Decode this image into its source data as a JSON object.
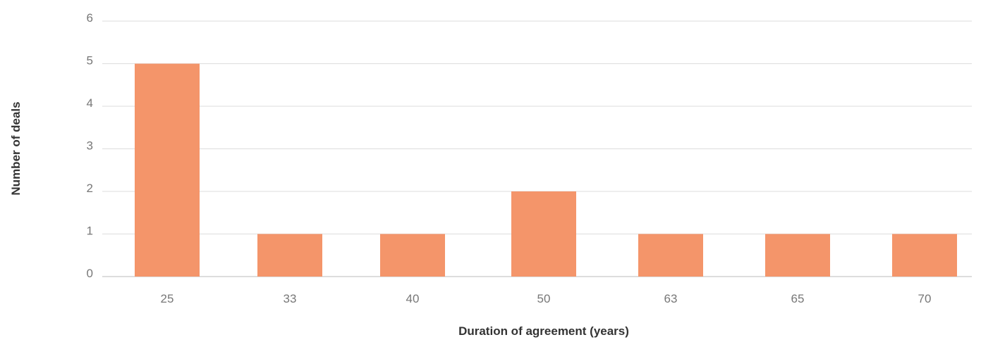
{
  "chart_data": {
    "type": "bar",
    "categories": [
      "25",
      "33",
      "40",
      "50",
      "63",
      "65",
      "70"
    ],
    "values": [
      5,
      1,
      1,
      2,
      1,
      1,
      1
    ],
    "xlabel": "Duration of agreement (years)",
    "ylabel": "Number of deals",
    "ylim": [
      0,
      6
    ],
    "yticks": [
      "0",
      "1",
      "2",
      "3",
      "4",
      "5",
      "6"
    ],
    "grid": true,
    "bar_color": "#F4956A"
  }
}
